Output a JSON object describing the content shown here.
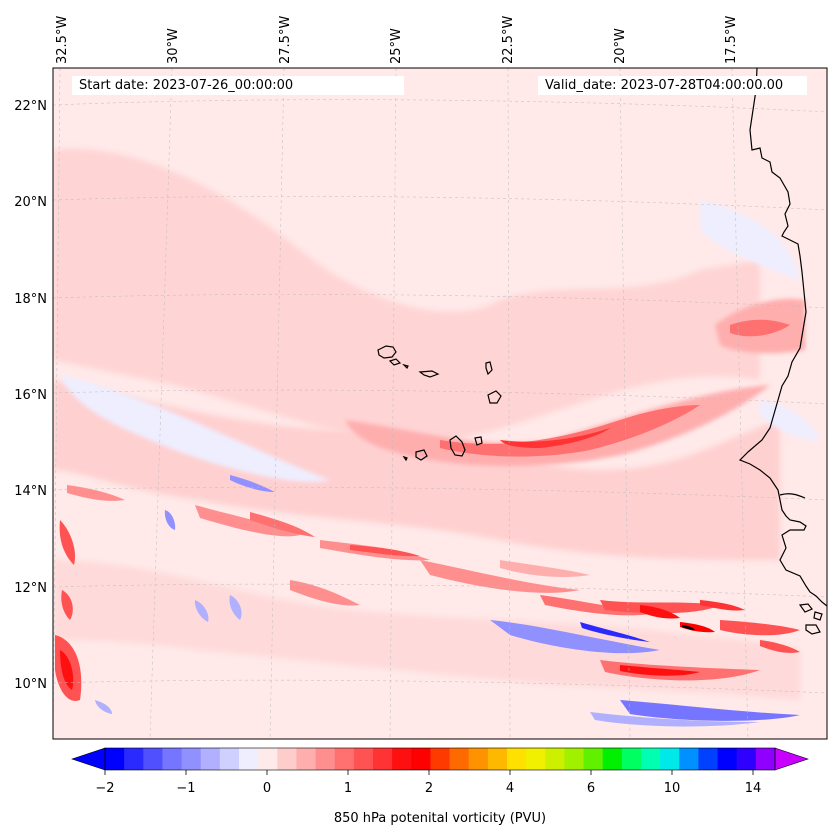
{
  "map": {
    "lon_labels": [
      "32.5°W",
      "30°W",
      "27.5°W",
      "25°W",
      "22.5°W",
      "20°W",
      "17.5°W"
    ],
    "lat_labels": [
      "22°N",
      "20°N",
      "18°N",
      "16°N",
      "14°N",
      "12°N",
      "10°N"
    ],
    "start_date": "Start date: 2023-07-26_00:00:00",
    "valid_date": "Valid_date: 2023-07-28T04:00:00.00",
    "background_color": "#ffe9e9"
  },
  "colorbar": {
    "label": "850 hPa potenital vorticity (PVU)",
    "ticks": [
      "−2",
      "−1",
      "0",
      "1",
      "2",
      "4",
      "6",
      "10",
      "14"
    ],
    "colors": [
      "#0000ff",
      "#2a2aff",
      "#5050ff",
      "#7575ff",
      "#9090ff",
      "#b0b0ff",
      "#d0d0ff",
      "#eeeeff",
      "#ffeaea",
      "#ffcccc",
      "#ffaeae",
      "#ff8f8f",
      "#ff7070",
      "#ff5252",
      "#ff3333",
      "#ff1010",
      "#ff0000",
      "#ff3a00",
      "#ff6a00",
      "#ff9200",
      "#ffb800",
      "#ffe000",
      "#f0f000",
      "#ccf000",
      "#a0f000",
      "#60f000",
      "#00f000",
      "#00ff60",
      "#00ffb0",
      "#00e8e8",
      "#0090ff",
      "#0040ff",
      "#0000ff",
      "#3000ff",
      "#9000ff"
    ],
    "under_color": "#0000ff",
    "over_color": "#c800ff"
  }
}
